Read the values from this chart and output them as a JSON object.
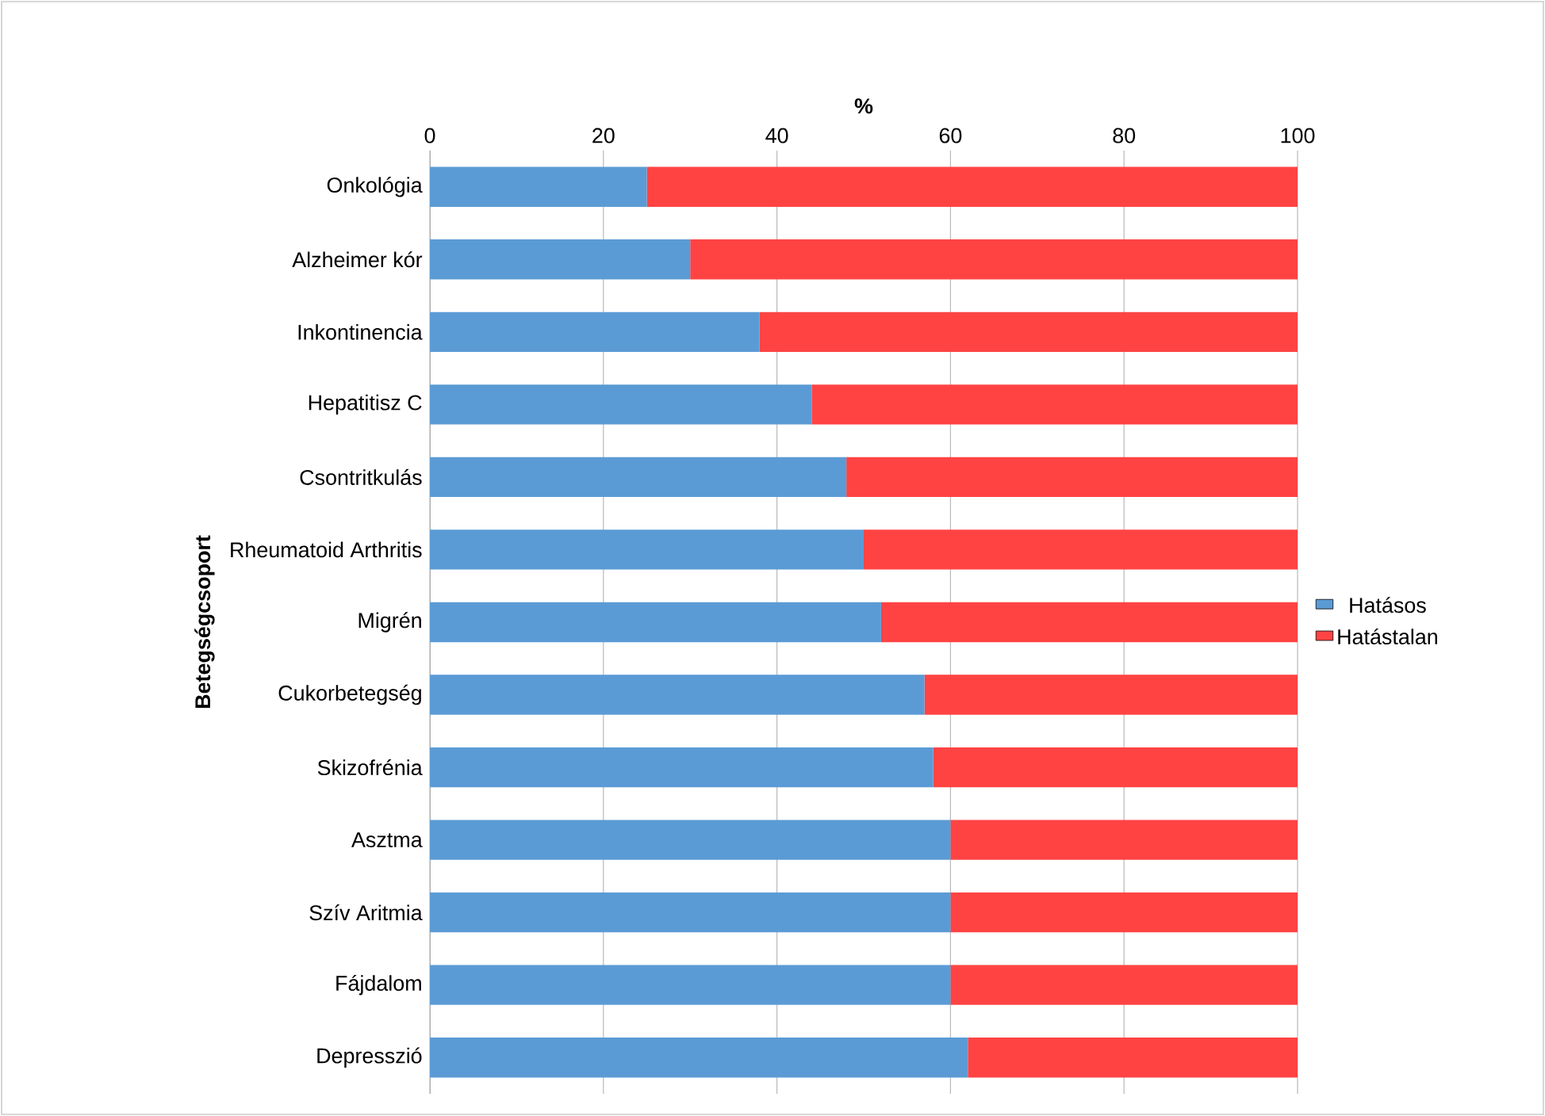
{
  "chart_data": {
    "type": "bar",
    "orientation": "horizontal",
    "stacked": true,
    "xlabel": "%",
    "ylabel": "Betegségcsoport",
    "categories": [
      "Onkológia",
      "Alzheimer kór",
      "Inkontinencia",
      "Hepatitisz C",
      "Csontritkulás",
      "Rheumatoid Arthritis",
      "Migrén",
      "Cukorbetegség",
      "Skizofrénia",
      "Asztma",
      "Szív Aritmia",
      "Fájdalom",
      "Depresszió"
    ],
    "series": [
      {
        "name": "Hatásos",
        "color": "#5b9bd5",
        "values": [
          25,
          30,
          38,
          44,
          48,
          50,
          52,
          57,
          58,
          60,
          60,
          60,
          62
        ]
      },
      {
        "name": "Hatástalan",
        "color": "#ff4343",
        "values": [
          75,
          70,
          62,
          56,
          52,
          50,
          48,
          43,
          42,
          40,
          40,
          40,
          38
        ]
      }
    ],
    "xlim": [
      0,
      100
    ],
    "xticks": [
      0,
      20,
      40,
      60,
      80,
      100
    ],
    "grid": "x",
    "legend": "right"
  }
}
